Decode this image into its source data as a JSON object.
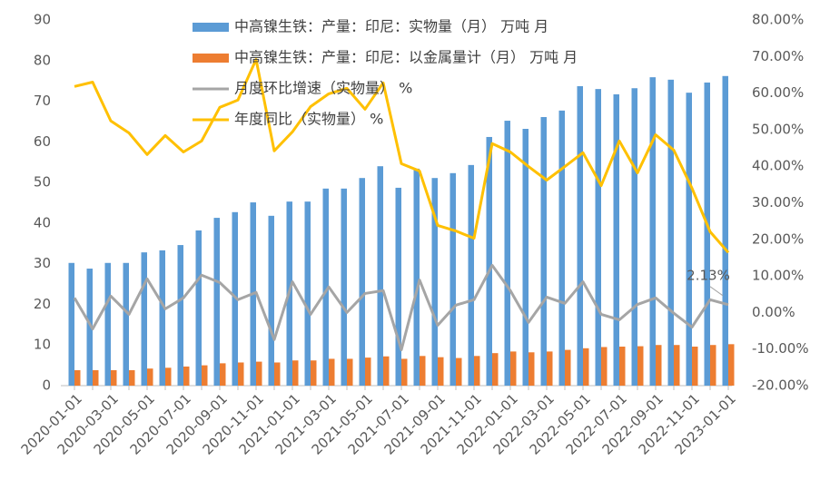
{
  "chart_data": {
    "type": "combo",
    "categories": [
      "2020-01-01",
      null,
      "2020-03-01",
      null,
      "2020-05-01",
      null,
      "2020-07-01",
      null,
      "2020-09-01",
      null,
      "2020-11-01",
      null,
      "2021-01-01",
      null,
      "2021-03-01",
      null,
      "2021-05-01",
      null,
      "2021-07-01",
      null,
      "2021-09-01",
      null,
      "2021-11-01",
      null,
      "2022-01-01",
      null,
      "2022-03-01",
      null,
      "2022-05-01",
      null,
      "2022-07-01",
      null,
      "2022-09-01",
      null,
      "2022-11-01",
      null,
      "2023-01-01"
    ],
    "series": [
      {
        "name": "中高镍生铁：产量：印尼：实物量（月） 万吨 月",
        "type": "bar",
        "color": "#5b9bd5",
        "values": [
          30.2,
          28.8,
          30.2,
          30.2,
          32.8,
          33.3,
          34.6,
          38.2,
          41.3,
          42.7,
          45.1,
          41.8,
          45.3,
          45.3,
          48.5,
          48.5,
          51.1,
          54.0,
          48.7,
          53.4,
          51.1,
          52.3,
          54.3,
          61.2,
          65.2,
          63.2,
          66.1,
          67.7,
          73.7,
          73.0,
          71.7,
          73.2,
          75.9,
          75.3,
          72.1,
          74.6,
          76.2
        ]
      },
      {
        "name": "中高镍生铁：产量：印尼：以金属量计（月） 万吨 月",
        "type": "bar",
        "color": "#ed7d31",
        "values": [
          3.8,
          3.8,
          3.8,
          3.8,
          4.2,
          4.4,
          4.7,
          5.0,
          5.5,
          5.7,
          5.9,
          5.7,
          6.2,
          6.2,
          6.6,
          6.6,
          6.9,
          7.2,
          6.6,
          7.3,
          7.0,
          6.8,
          7.3,
          8.0,
          8.4,
          8.2,
          8.4,
          8.8,
          9.2,
          9.5,
          9.6,
          9.7,
          10.0,
          10.0,
          9.6,
          10.0,
          10.2
        ]
      },
      {
        "name": "月度环比增速（实物量） %",
        "type": "line",
        "axis": "y2",
        "color": "#a5a5a5",
        "values": [
          4.0,
          -4.5,
          4.5,
          -0.5,
          9.2,
          1.0,
          4.0,
          10.2,
          8.2,
          3.5,
          5.5,
          -7.4,
          8.4,
          -0.5,
          7.0,
          0.0,
          5.2,
          6.0,
          -10.2,
          8.9,
          -3.5,
          2.0,
          3.5,
          12.9,
          6.0,
          -2.7,
          4.2,
          2.5,
          8.4,
          -0.5,
          -2.0,
          2.2,
          4.0,
          -0.2,
          -4.0,
          3.5,
          2.13
        ],
        "value_labels": [
          null,
          null,
          null,
          null,
          null,
          null,
          null,
          null,
          null,
          null,
          null,
          null,
          null,
          null,
          null,
          null,
          null,
          null,
          null,
          null,
          null,
          null,
          null,
          null,
          null,
          null,
          null,
          null,
          null,
          null,
          null,
          null,
          null,
          null,
          null,
          null,
          "2.13%"
        ]
      },
      {
        "name": "年度同比（实物量） %",
        "type": "line",
        "axis": "y2",
        "color": "#ffc000",
        "values": [
          61.8,
          63.0,
          52.4,
          49.1,
          43.2,
          48.4,
          43.9,
          46.9,
          56.1,
          58.1,
          69.2,
          44.2,
          49.4,
          56.3,
          59.8,
          61.3,
          55.6,
          62.8,
          40.7,
          38.7,
          23.8,
          22.3,
          20.3,
          46.2,
          43.9,
          39.9,
          36.2,
          39.9,
          43.7,
          34.7,
          46.9,
          38.2,
          48.6,
          44.4,
          34.0,
          22.1,
          16.4
        ]
      }
    ],
    "ylim": [
      0,
      90
    ],
    "yticks": [
      0,
      10,
      20,
      30,
      40,
      50,
      60,
      70,
      80,
      90
    ],
    "y2lim": [
      -20,
      80
    ],
    "y2ticks": [
      {
        "value": -20,
        "label": "-20.00%"
      },
      {
        "value": -10,
        "label": "-10.00%"
      },
      {
        "value": 0,
        "label": "0.00%"
      },
      {
        "value": 10,
        "label": "10.00%"
      },
      {
        "value": 20,
        "label": "20.00%"
      },
      {
        "value": 30,
        "label": "30.00%"
      },
      {
        "value": 40,
        "label": "40.00%"
      },
      {
        "value": 50,
        "label": "50.00%"
      },
      {
        "value": 60,
        "label": "60.00%"
      },
      {
        "value": 70,
        "label": "70.00%"
      },
      {
        "value": 80,
        "label": "80.00%"
      }
    ],
    "grid": false
  }
}
